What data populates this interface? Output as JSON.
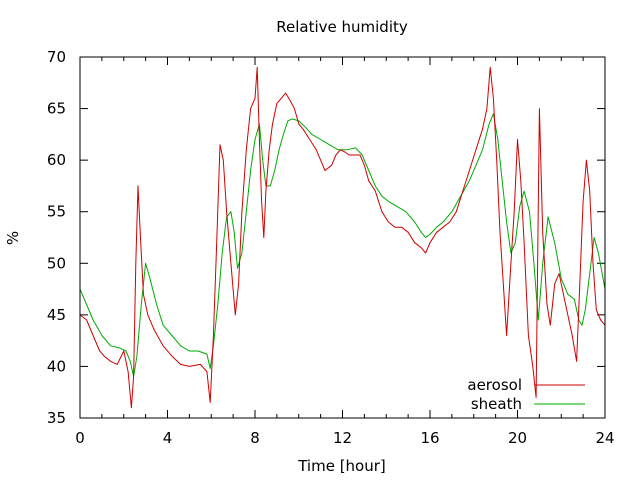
{
  "chart_data": {
    "type": "line",
    "title": "Relative humidity",
    "xlabel": "Time [hour]",
    "ylabel": "%",
    "xlim": [
      0,
      24
    ],
    "ylim": [
      35,
      70
    ],
    "xticks": [
      0,
      4,
      8,
      12,
      16,
      20,
      24
    ],
    "yticks": [
      35,
      40,
      45,
      50,
      55,
      60,
      65,
      70
    ],
    "grid": false,
    "legend_position": "bottom-right",
    "series": [
      {
        "name": "aerosol",
        "color": "#d00000",
        "x": [
          0,
          0.3,
          0.6,
          0.9,
          1.1,
          1.4,
          1.7,
          2.0,
          2.2,
          2.35,
          2.45,
          2.55,
          2.65,
          2.75,
          2.9,
          3.1,
          3.4,
          3.8,
          4.2,
          4.6,
          5.0,
          5.5,
          5.8,
          5.95,
          6.1,
          6.25,
          6.4,
          6.55,
          6.7,
          6.9,
          7.1,
          7.25,
          7.4,
          7.6,
          7.8,
          8.0,
          8.1,
          8.2,
          8.3,
          8.4,
          8.5,
          8.65,
          8.8,
          9.0,
          9.2,
          9.4,
          9.6,
          9.8,
          10.0,
          10.2,
          10.5,
          10.8,
          11.0,
          11.2,
          11.5,
          11.7,
          11.9,
          12.1,
          12.3,
          12.5,
          12.8,
          13.0,
          13.2,
          13.5,
          13.8,
          14.1,
          14.4,
          14.7,
          15.0,
          15.3,
          15.6,
          15.8,
          16.0,
          16.3,
          16.6,
          16.9,
          17.2,
          17.5,
          17.8,
          18.1,
          18.4,
          18.6,
          18.75,
          18.9,
          19.05,
          19.2,
          19.35,
          19.5,
          19.7,
          19.85,
          20.0,
          20.15,
          20.3,
          20.5,
          20.7,
          20.85,
          21.0,
          21.15,
          21.35,
          21.5,
          21.7,
          21.9,
          22.1,
          22.3,
          22.5,
          22.7,
          22.85,
          23.0,
          23.15,
          23.3,
          23.45,
          23.6,
          23.8,
          24.0
        ],
        "values": [
          45,
          44.5,
          43,
          41.5,
          41,
          40.5,
          40.2,
          41.5,
          39.5,
          36,
          39,
          50,
          57.5,
          53,
          47,
          45,
          43.5,
          42,
          41,
          40.2,
          40,
          40.2,
          39.5,
          36.5,
          43,
          52,
          61.5,
          60,
          55,
          50,
          45,
          48,
          55,
          61,
          65,
          66,
          69,
          62,
          56,
          52.5,
          57,
          61,
          63.5,
          65.5,
          66,
          66.5,
          65.8,
          65,
          63.5,
          63,
          62,
          61,
          60,
          59,
          59.5,
          60.5,
          61,
          60.8,
          60.5,
          60.5,
          60.5,
          59.5,
          58,
          57,
          55,
          54,
          53.5,
          53.5,
          53,
          52,
          51.5,
          51,
          52,
          53,
          53.5,
          54,
          55,
          57,
          59,
          61,
          63,
          65,
          69,
          66,
          60,
          53,
          48,
          43,
          50,
          55,
          62,
          58,
          52,
          43,
          40,
          37,
          65,
          53,
          46,
          44,
          48,
          49,
          47,
          45,
          43,
          40.5,
          48,
          56,
          60,
          57,
          50,
          45.5,
          44.5,
          44
        ]
      },
      {
        "name": "sheath",
        "color": "#00aa00",
        "x": [
          0,
          0.3,
          0.6,
          1.0,
          1.4,
          1.8,
          2.1,
          2.3,
          2.45,
          2.6,
          2.8,
          3.0,
          3.2,
          3.5,
          3.8,
          4.2,
          4.6,
          5.0,
          5.4,
          5.8,
          5.95,
          6.1,
          6.3,
          6.5,
          6.7,
          6.9,
          7.05,
          7.2,
          7.4,
          7.6,
          7.8,
          8.0,
          8.2,
          8.35,
          8.5,
          8.7,
          8.9,
          9.1,
          9.3,
          9.5,
          9.7,
          10.0,
          10.3,
          10.6,
          11.0,
          11.4,
          11.8,
          12.2,
          12.6,
          12.9,
          13.2,
          13.5,
          13.8,
          14.1,
          14.5,
          14.9,
          15.3,
          15.6,
          15.8,
          16.0,
          16.3,
          16.6,
          17.0,
          17.4,
          17.8,
          18.1,
          18.4,
          18.7,
          18.9,
          19.1,
          19.3,
          19.5,
          19.7,
          19.9,
          20.1,
          20.3,
          20.55,
          20.75,
          20.95,
          21.15,
          21.4,
          21.7,
          22.0,
          22.3,
          22.6,
          22.8,
          22.95,
          23.1,
          23.3,
          23.5,
          23.7,
          24.0
        ],
        "values": [
          47.5,
          46,
          44.5,
          43,
          42,
          41.8,
          41.5,
          40.5,
          39,
          41,
          46,
          50,
          48.5,
          46,
          44,
          43,
          42,
          41.5,
          41.5,
          41.2,
          39.8,
          42,
          46,
          51,
          54.5,
          55,
          53,
          49.5,
          51,
          55,
          59,
          62,
          63.5,
          60,
          57.5,
          57.5,
          59,
          61,
          62.5,
          63.8,
          64,
          63.8,
          63.2,
          62.5,
          62,
          61.5,
          61,
          61,
          61.2,
          60.5,
          59,
          57.5,
          56.5,
          56,
          55.5,
          55,
          54,
          53,
          52.5,
          52.8,
          53.5,
          54,
          55,
          56.5,
          58,
          59.5,
          61,
          63.5,
          64.5,
          62,
          58,
          54,
          51,
          52,
          55.5,
          57,
          55,
          50,
          44.5,
          50,
          54.5,
          52,
          48.5,
          47,
          46.5,
          44.5,
          44,
          45.5,
          49,
          52.5,
          51,
          47.5
        ]
      }
    ]
  }
}
